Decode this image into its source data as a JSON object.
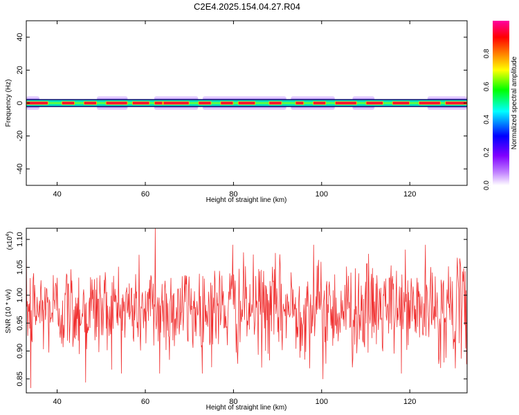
{
  "figure": {
    "title": "C2E4.2025.154.04.27.R04"
  },
  "chart_data": [
    {
      "type": "heatmap",
      "panel": "spectrogram",
      "xlabel": "Height of straight line (km)",
      "ylabel": "Frequency (Hz)",
      "xlim": [
        33,
        133
      ],
      "ylim": [
        -50,
        50
      ],
      "x_ticks": [
        40,
        60,
        80,
        100,
        120
      ],
      "y_ticks": [
        40,
        20,
        0,
        -20,
        -40
      ],
      "band_center_hz": 0,
      "band_halfwidth_hz": 2,
      "hot_segments_km": [
        [
          33,
          38
        ],
        [
          41,
          44
        ],
        [
          46,
          49
        ],
        [
          51,
          56
        ],
        [
          57,
          61
        ],
        [
          62,
          64
        ],
        [
          64,
          70
        ],
        [
          72,
          75
        ],
        [
          77,
          80
        ],
        [
          81,
          85
        ],
        [
          88,
          91
        ],
        [
          94,
          96
        ],
        [
          98,
          101
        ],
        [
          103,
          108
        ],
        [
          110,
          114
        ],
        [
          116,
          120
        ],
        [
          122,
          127
        ],
        [
          128,
          133
        ]
      ],
      "purple_halo_segments_km": [
        [
          33,
          36
        ],
        [
          49,
          56
        ],
        [
          62,
          72
        ],
        [
          73,
          92
        ],
        [
          93,
          103
        ],
        [
          107,
          112
        ],
        [
          124,
          133
        ]
      ],
      "colorbar": {
        "label": "Normalized spectral amplitude",
        "ticks": [
          "0.0",
          "0.2",
          "0.4",
          "0.6",
          "0.8"
        ],
        "range": [
          0,
          1
        ],
        "colors": [
          "#ffffff",
          "#8000ff",
          "#0000ff",
          "#00ffff",
          "#00ff00",
          "#ffff00",
          "#ff8000",
          "#ff0000",
          "#ff00a0"
        ]
      }
    },
    {
      "type": "line",
      "panel": "snr",
      "xlabel": "Height of straight line (km)",
      "ylabel": "SNR (10 * v/v)",
      "ymultiplier": "(x10",
      "ymultiplier_exp": "4",
      "ymultiplier_close": ")",
      "xlim": [
        33,
        133
      ],
      "ylim": [
        0.825,
        1.12
      ],
      "x_ticks": [
        40,
        60,
        80,
        100,
        120
      ],
      "y_ticks": [
        "1.10",
        "1.05",
        "1.00",
        "0.95",
        "0.90",
        "0.85"
      ],
      "y_tick_values": [
        1.1,
        1.05,
        1.0,
        0.95,
        0.9,
        0.85
      ],
      "series": [
        {
          "color": "#f03030",
          "mean": 0.975,
          "noise_std": 0.042,
          "n_points": 900,
          "notable_points": [
            [
              33.1,
              0.98
            ],
            [
              34.0,
              0.834
            ],
            [
              46.5,
              0.844
            ],
            [
              62.3,
              1.12
            ],
            [
              63.3,
              0.86
            ],
            [
              79.8,
              1.09
            ],
            [
              98.2,
              1.09
            ],
            [
              100.3,
              0.85
            ],
            [
              107.0,
              0.871
            ],
            [
              127.0,
              0.87
            ]
          ]
        }
      ]
    }
  ]
}
